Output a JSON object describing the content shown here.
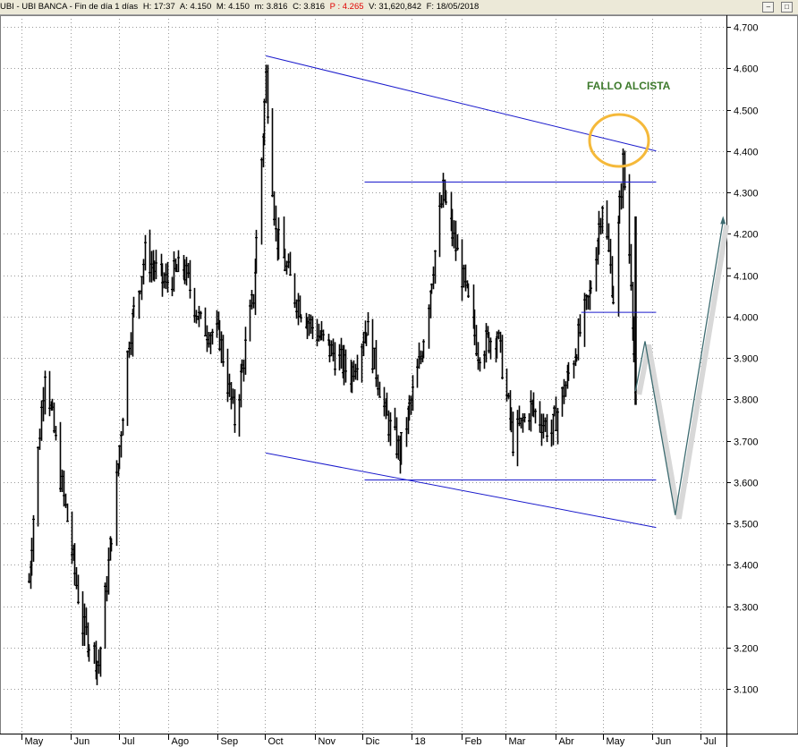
{
  "header": {
    "symbol": "UBI - UBI BANCA - Fin de día 1 días",
    "h": "H: 17:37",
    "a": "A: 4.150",
    "m_high": "M: 4.150",
    "m_low": "m: 3.816",
    "c": "C: 3.816",
    "p": "P : 4.265",
    "v": "V: 31,620,842",
    "f": "F: 18/05/2018"
  },
  "chart_data": {
    "type": "bar",
    "title": "",
    "xlabel": "",
    "ylabel": "",
    "ylim": [
      3.05,
      4.72
    ],
    "y_ticks": [
      "4.700",
      "4.600",
      "4.500",
      "4.400",
      "4.300",
      "4.200",
      "4.100",
      "4.000",
      "3.900",
      "3.800",
      "3.700",
      "3.600",
      "3.500",
      "3.400",
      "3.300",
      "3.200",
      "3.100"
    ],
    "x_ticks": [
      "May",
      "Jun",
      "Jul",
      "Ago",
      "Sep",
      "Oct",
      "Nov",
      "Dic",
      "18",
      "Feb",
      "Mar",
      "Abr",
      "May",
      "Jun",
      "Jul"
    ],
    "series": [
      {
        "style": "ohlc-bars",
        "x": [
          "2017-05-02",
          "2017-05-12",
          "2017-05-24",
          "2017-06-05",
          "2017-06-15",
          "2017-06-26",
          "2017-07-04",
          "2017-07-14",
          "2017-07-26",
          "2017-08-07",
          "2017-08-18",
          "2017-08-30",
          "2017-09-08",
          "2017-09-20",
          "2017-09-28",
          "2017-10-04",
          "2017-10-16",
          "2017-10-26",
          "2017-11-07",
          "2017-11-20",
          "2017-11-30",
          "2017-12-12",
          "2017-12-21",
          "2018-01-03",
          "2018-01-17",
          "2018-01-29",
          "2018-02-08",
          "2018-02-20",
          "2018-03-02",
          "2018-03-13",
          "2018-03-26",
          "2018-04-06",
          "2018-04-19",
          "2018-04-27",
          "2018-05-04",
          "2018-05-10",
          "2018-05-15",
          "2018-05-18"
        ],
        "close": [
          3.36,
          3.88,
          3.56,
          3.25,
          3.16,
          3.6,
          3.95,
          4.15,
          4.08,
          4.12,
          3.98,
          3.95,
          3.75,
          4.05,
          4.58,
          4.2,
          4.05,
          3.98,
          3.92,
          3.86,
          3.98,
          3.76,
          3.67,
          3.9,
          4.3,
          4.1,
          3.92,
          3.96,
          3.7,
          3.78,
          3.72,
          3.86,
          4.05,
          4.28,
          4.05,
          4.37,
          4.1,
          3.816
        ]
      }
    ],
    "lines": [
      {
        "points": [
          [
            "2017-09-28",
            4.63
          ],
          [
            "2018-05-31",
            4.4
          ]
        ]
      },
      {
        "points": [
          [
            "2017-09-28",
            3.67
          ],
          [
            "2018-05-31",
            3.49
          ]
        ]
      },
      {
        "points": [
          [
            "2017-11-29",
            4.325
          ],
          [
            "2018-05-31",
            4.325
          ]
        ]
      },
      {
        "points": [
          [
            "2017-11-29",
            3.605
          ],
          [
            "2018-05-31",
            3.605
          ]
        ]
      },
      {
        "points": [
          [
            "2018-04-14",
            4.01
          ],
          [
            "2018-05-31",
            4.01
          ]
        ]
      }
    ],
    "projection": [
      [
        "2018-05-18",
        3.82
      ],
      [
        "2018-05-24",
        3.94
      ],
      [
        "2018-06-12",
        3.52
      ],
      [
        "2018-07-12",
        4.23
      ]
    ],
    "annotation": "FALLO ALCISTA",
    "colors": {
      "bars": "#000000",
      "trendlines": "#1a1acc",
      "projection": "#3d6b70",
      "circle": "#f5b93a",
      "annotation": "#3d7a2c"
    }
  }
}
